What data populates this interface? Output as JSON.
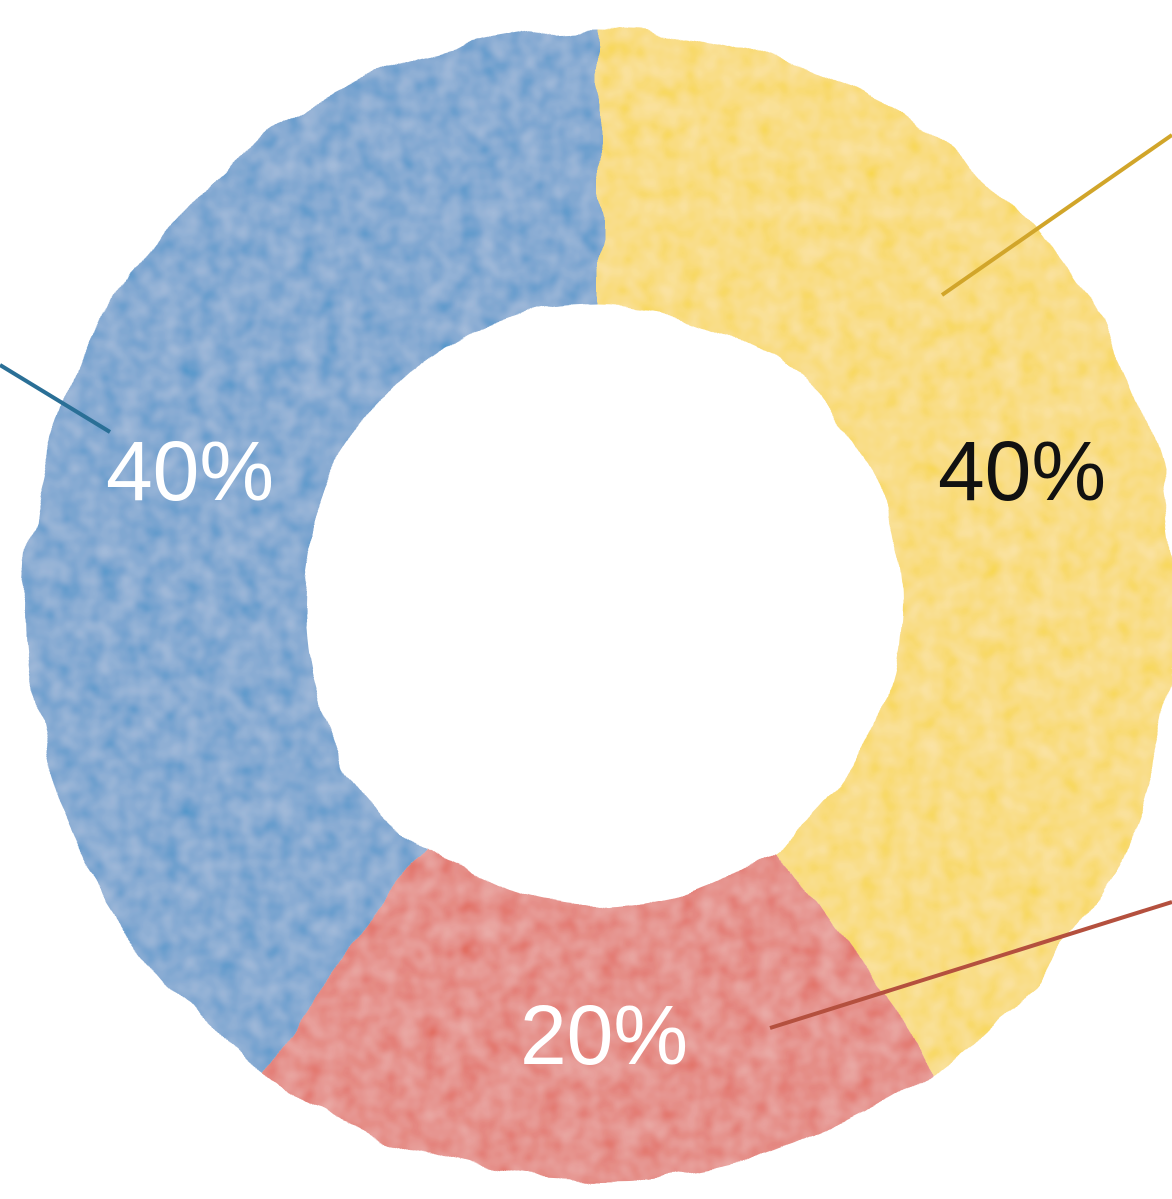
{
  "chart_data": {
    "type": "pie",
    "style": "donut",
    "title": "",
    "slices": [
      {
        "label": "40%",
        "value": 40,
        "color": "#1f7fc0",
        "label_color": "#ffffff"
      },
      {
        "label": "40%",
        "value": 40,
        "color": "#f7cf1a",
        "label_color": "#111111"
      },
      {
        "label": "20%",
        "value": 20,
        "color": "#dc4a3a",
        "label_color": "#ffffff"
      }
    ]
  }
}
